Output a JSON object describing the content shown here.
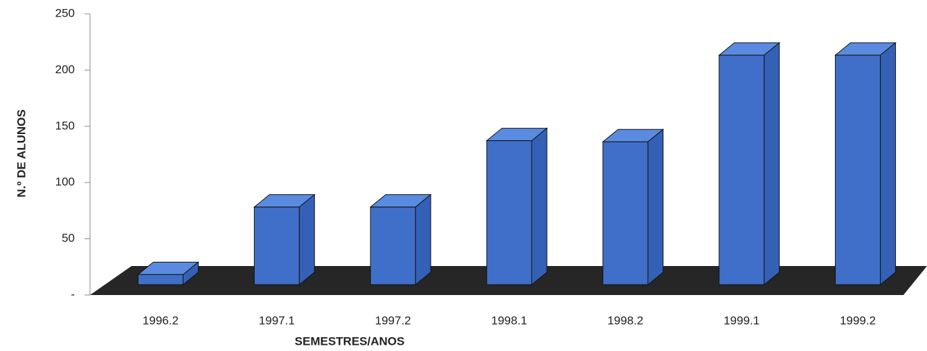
{
  "chart_data": {
    "type": "bar3d",
    "x_label": "SEMESTRES/ANOS",
    "y_label": "N.º DE ALUNOS",
    "categories": [
      "1996.2",
      "1997.1",
      "1997.2",
      "1998.1",
      "1998.2",
      "1999.1",
      "1999.2"
    ],
    "values": [
      9,
      69,
      69,
      128,
      127,
      204,
      204
    ],
    "color": "#3f6fc8",
    "ylim": [
      0,
      250
    ],
    "yticks": [
      {
        "value": 0,
        "label": "-"
      },
      50,
      100,
      150,
      200,
      250
    ]
  }
}
